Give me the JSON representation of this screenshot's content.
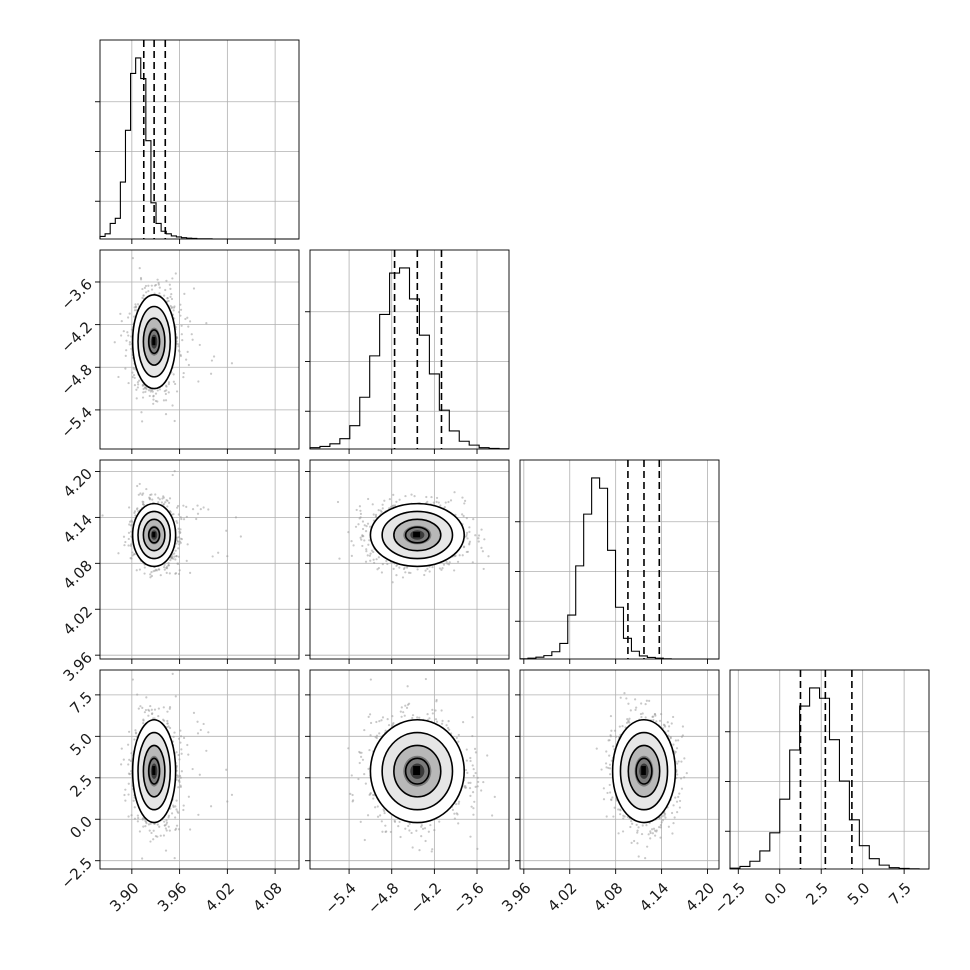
{
  "chart_data": {
    "type": "corner",
    "n_params": 4,
    "grid": true,
    "quantile_lines": "dashed",
    "params": [
      {
        "range": [
          3.86,
          4.11
        ],
        "ticks": [
          "3.90",
          "3.96",
          "4.02",
          "4.08"
        ],
        "tick_values": [
          3.9,
          3.96,
          4.02,
          4.08
        ],
        "q16": 3.915,
        "q50": 3.928,
        "q84": 3.942,
        "sigma": 0.0135
      },
      {
        "range": [
          -5.95,
          -3.15
        ],
        "ticks": [
          "−5.4",
          "−4.8",
          "−4.2",
          "−3.6"
        ],
        "tick_values": [
          -5.4,
          -4.8,
          -4.2,
          -3.6
        ],
        "q16": -4.76,
        "q50": -4.44,
        "q84": -4.1,
        "sigma": 0.33
      },
      {
        "range": [
          3.955,
          4.215
        ],
        "ticks": [
          "3.96",
          "4.02",
          "4.08",
          "4.14",
          "4.20"
        ],
        "tick_values": [
          3.96,
          4.02,
          4.08,
          4.14,
          4.2
        ],
        "q16": 4.096,
        "q50": 4.117,
        "q84": 4.137,
        "sigma": 0.0205
      },
      {
        "range": [
          -3.0,
          9.0
        ],
        "ticks": [
          "−2.5",
          "0.0",
          "2.5",
          "5.0",
          "7.5"
        ],
        "tick_values": [
          -2.5,
          0.0,
          2.5,
          5.0,
          7.5
        ],
        "q16": 1.25,
        "q50": 2.75,
        "q84": 4.35,
        "sigma": 1.55
      }
    ],
    "histograms": [
      {
        "param": 0,
        "bin_edges_start": 3.86,
        "bin_width": 0.0064,
        "counts": [
          1,
          2,
          6,
          8,
          22,
          42,
          64,
          70,
          62,
          38,
          14,
          6,
          3,
          2,
          1.2,
          0.8,
          0.5,
          0.3,
          0.2,
          0.1,
          0.1,
          0.1,
          0,
          0,
          0,
          0,
          0,
          0,
          0,
          0,
          0,
          0,
          0,
          0,
          0,
          0,
          0,
          0,
          0
        ]
      },
      {
        "param": 1,
        "bin_edges_start": -5.95,
        "bin_width": 0.14,
        "counts": [
          0.5,
          1,
          2,
          4,
          9,
          20,
          36,
          52,
          68,
          70,
          58,
          44,
          29,
          15,
          7,
          3,
          1.5,
          0.5,
          0.2,
          0.1
        ]
      },
      {
        "param": 2,
        "bin_edges_start": 3.955,
        "bin_width": 0.0104,
        "counts": [
          0.1,
          0.3,
          0.7,
          1.3,
          2.8,
          6,
          17,
          36,
          56,
          70,
          66,
          42,
          20,
          8,
          3,
          1.2,
          0.6,
          0.3,
          0.1,
          0,
          0,
          0,
          0,
          0,
          0
        ]
      },
      {
        "param": 3,
        "bin_edges_start": -3.0,
        "bin_width": 0.6,
        "counts": [
          0.3,
          1,
          3,
          7,
          14,
          27,
          46,
          63,
          70,
          66,
          50,
          34,
          19,
          9,
          4,
          1.5,
          0.5,
          0.2,
          0.1,
          0
        ]
      }
    ],
    "pairs": [
      {
        "x": 0,
        "y": 1,
        "center": [
          3.928,
          -4.44
        ],
        "rho": 0.0
      },
      {
        "x": 0,
        "y": 2,
        "center": [
          3.928,
          4.117
        ],
        "rho": -0.1
      },
      {
        "x": 0,
        "y": 3,
        "center": [
          3.928,
          2.9
        ],
        "rho": 0.0
      },
      {
        "x": 1,
        "y": 2,
        "center": [
          -4.44,
          4.117
        ],
        "rho": 0.0
      },
      {
        "x": 1,
        "y": 3,
        "center": [
          -4.44,
          2.9
        ],
        "rho": 0.0
      },
      {
        "x": 2,
        "y": 3,
        "center": [
          4.117,
          2.9
        ],
        "rho": 0.0
      }
    ],
    "contour_levels_sigma": [
      0.5,
      1.0,
      1.5,
      2.0
    ]
  }
}
